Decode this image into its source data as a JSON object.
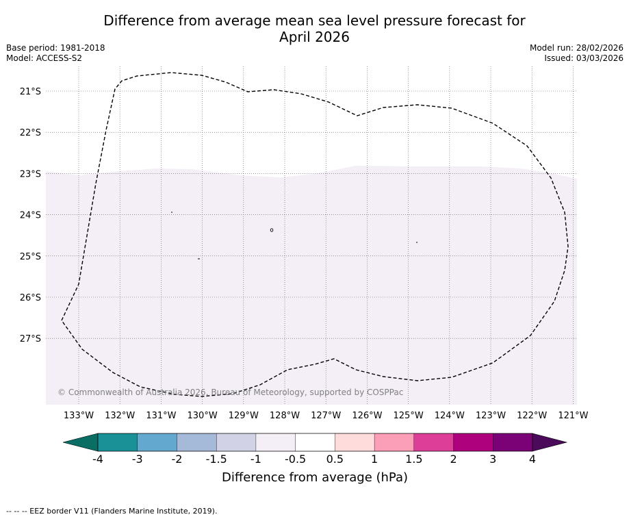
{
  "title": {
    "line1": "Difference from average mean sea level pressure forecast for",
    "line2": "April 2026"
  },
  "meta_left": {
    "base_period": "Base period: 1981-2018",
    "model": "Model: ACCESS-S2"
  },
  "meta_right": {
    "model_run": "Model run: 28/02/2026",
    "issued": "Issued: 03/03/2026"
  },
  "map": {
    "lon_labels": [
      "133°W",
      "132°W",
      "131°W",
      "130°W",
      "129°W",
      "128°W",
      "127°W",
      "126°W",
      "125°W",
      "124°W",
      "123°W",
      "122°W",
      "121°W"
    ],
    "lat_labels": [
      "21°S",
      "22°S",
      "23°S",
      "24°S",
      "25°S",
      "26°S",
      "27°S"
    ],
    "copyright": "© Commonwealth of Australia 2026, Bureau of Meteorology, supported by COSPPac",
    "shading_color": "#f4eef6",
    "eez_color": "#000000"
  },
  "colorbar": {
    "label": "Difference from average (hPa)",
    "ticks": [
      "-4",
      "-3",
      "-2",
      "-1.5",
      "-1",
      "-0.5",
      "0.5",
      "1",
      "1.5",
      "2",
      "3",
      "4"
    ],
    "extend_low_color": "#0b6e64",
    "extend_high_color": "#4b0a5a",
    "colors": [
      "#1a9197",
      "#63a8cf",
      "#a5bad8",
      "#d2d2e6",
      "#f4eef6",
      "#ffffff",
      "#fedcdc",
      "#fb9fb9",
      "#dd3e98",
      "#ad017e",
      "#7b0177"
    ]
  },
  "footer": "-- -- -- EEZ border V11 (Flanders Marine Institute, 2019)."
}
